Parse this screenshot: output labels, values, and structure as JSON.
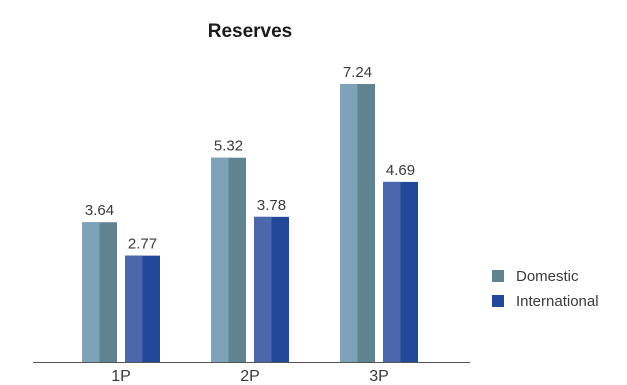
{
  "chart_data": {
    "type": "bar",
    "title": "Reserves",
    "xlabel": "",
    "ylabel": "",
    "categories": [
      "1P",
      "2P",
      "3P"
    ],
    "series": [
      {
        "name": "Domestic",
        "values": [
          3.64,
          5.32,
          7.24
        ],
        "color": "#5f848f",
        "highlight": "#7ea3b9"
      },
      {
        "name": "International",
        "values": [
          2.77,
          3.78,
          4.69
        ],
        "color": "#22489a",
        "highlight": "#4a68ab"
      }
    ],
    "data_labels": [
      [
        "3.64",
        "5.32",
        "7.24"
      ],
      [
        "2.77",
        "3.78",
        "4.69"
      ]
    ],
    "ylim": [
      0,
      8
    ],
    "grid": false,
    "legend_position": "right"
  }
}
